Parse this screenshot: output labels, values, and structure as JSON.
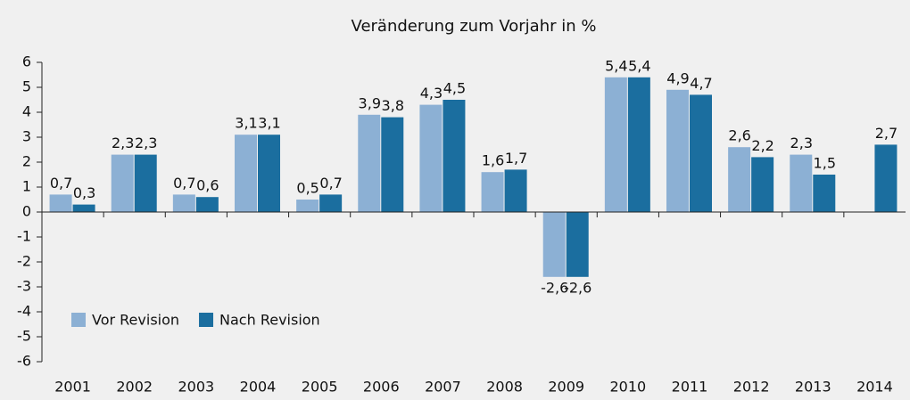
{
  "chart_data": {
    "type": "bar",
    "title": "Veränderung zum Vorjahr in %",
    "categories": [
      "2001",
      "2002",
      "2003",
      "2004",
      "2005",
      "2006",
      "2007",
      "2008",
      "2009",
      "2010",
      "2011",
      "2012",
      "2013",
      "2014"
    ],
    "series": [
      {
        "name": "Vor Revision",
        "color": "#8cb0d4",
        "values": [
          0.7,
          2.3,
          0.7,
          3.1,
          0.5,
          3.9,
          4.3,
          1.6,
          -2.6,
          5.4,
          4.9,
          2.6,
          2.3,
          null
        ],
        "value_labels": [
          "0,7",
          "2,3",
          "0,7",
          "3,1",
          "0,5",
          "3,9",
          "4,3",
          "1,6",
          "-2,6",
          "5,4",
          "4,9",
          "2,6",
          "2,3",
          null
        ]
      },
      {
        "name": "Nach Revision",
        "color": "#1b6e9f",
        "values": [
          0.3,
          2.3,
          0.6,
          3.1,
          0.7,
          3.8,
          4.5,
          1.7,
          -2.6,
          5.4,
          4.7,
          2.2,
          1.5,
          2.7
        ],
        "value_labels": [
          "0,3",
          "2,3",
          "0,6",
          "3,1",
          "0,7",
          "3,8",
          "4,5",
          "1,7",
          "-2,6",
          "5,4",
          "4,7",
          "2,2",
          "1,5",
          "2,7"
        ]
      }
    ],
    "ylim": [
      -6,
      6
    ],
    "yticks": [
      -6,
      -5,
      -4,
      -3,
      -2,
      -1,
      0,
      1,
      2,
      3,
      4,
      5,
      6
    ],
    "grid": false,
    "legend": "lower left"
  }
}
